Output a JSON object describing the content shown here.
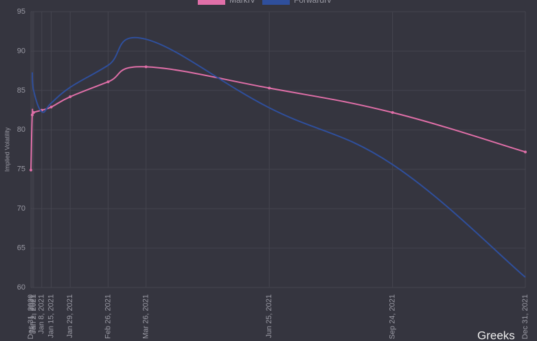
{
  "chart_data": {
    "type": "line",
    "y_label": "Implied Volatility",
    "x": [
      "Dec 31, 2020",
      "Jan 1, 2021",
      "Jan 2, 2021",
      "Jan 8, 2021",
      "Jan 15, 2021",
      "Jan 29, 2021",
      "Feb 26, 2021",
      "Mar 26, 2021",
      "Jun 25, 2021",
      "Sep 24, 2021",
      "Dec 31, 2021"
    ],
    "series": [
      {
        "name": "MarkIV",
        "color": "#e06fa8",
        "values": [
          74.9,
          81.9,
          82.2,
          82.5,
          82.9,
          84.2,
          86.1,
          88.0,
          85.3,
          82.2,
          77.2
        ]
      },
      {
        "name": "ForwardIV",
        "color": "#2f4f9c",
        "values": [
          null,
          87.3,
          85.0,
          82.3,
          83.4,
          85.4,
          88.2,
          91.5,
          82.8,
          75.6,
          61.3
        ]
      }
    ],
    "ylim": [
      60,
      95
    ],
    "yticks": [
      60,
      65,
      70,
      75,
      80,
      85,
      90,
      95
    ],
    "grid": true,
    "watermark": "Greeks"
  }
}
